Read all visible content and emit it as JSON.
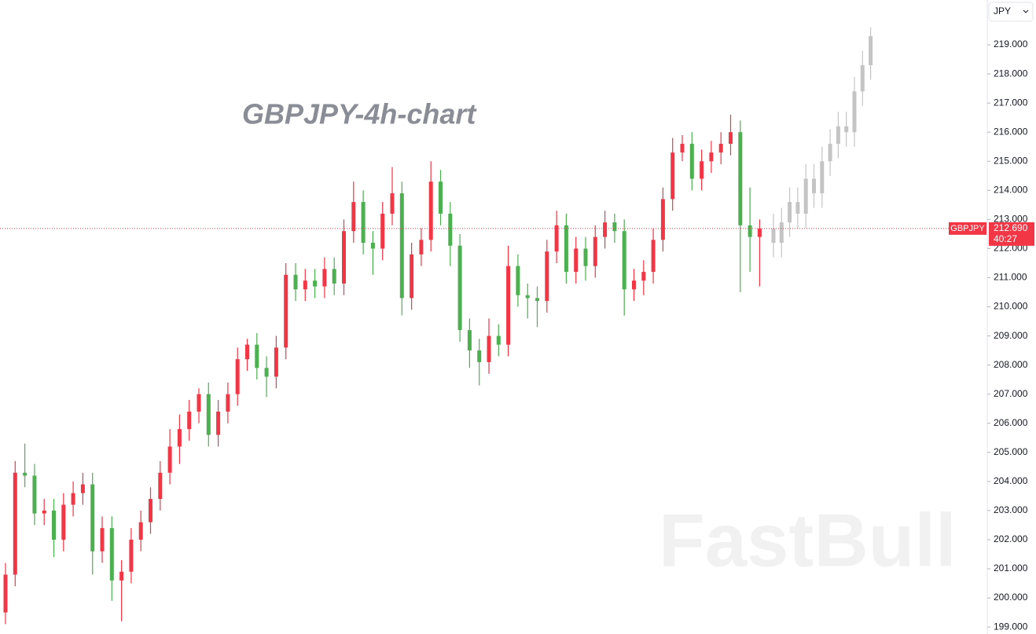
{
  "chart_data": {
    "type": "candlestick",
    "title": "GBPJPY-4h-chart",
    "watermark": "FastBull",
    "currency": "JPY",
    "symbol": "GBPJPY",
    "last_price": {
      "value": 212.69,
      "label": "212.690"
    },
    "countdown": "40:27",
    "price_line_color": "#f23645",
    "ylim": [
      198.76,
      220.54
    ],
    "yticks": [
      {
        "value": 199,
        "label": "199.000"
      },
      {
        "value": 200,
        "label": "200.000"
      },
      {
        "value": 201,
        "label": "201.000"
      },
      {
        "value": 202,
        "label": "202.000"
      },
      {
        "value": 203,
        "label": "203.000"
      },
      {
        "value": 204,
        "label": "204.000"
      },
      {
        "value": 205,
        "label": "205.000"
      },
      {
        "value": 206,
        "label": "206.000"
      },
      {
        "value": 207,
        "label": "207.000"
      },
      {
        "value": 208,
        "label": "208.000"
      },
      {
        "value": 209,
        "label": "209.000"
      },
      {
        "value": 210,
        "label": "210.000"
      },
      {
        "value": 211,
        "label": "211.000"
      },
      {
        "value": 212,
        "label": "212.000"
      },
      {
        "value": 213,
        "label": "213.000"
      },
      {
        "value": 214,
        "label": "214.000"
      },
      {
        "value": 215,
        "label": "215.000"
      },
      {
        "value": 216,
        "label": "216.000"
      },
      {
        "value": 217,
        "label": "217.000"
      },
      {
        "value": 218,
        "label": "218.000"
      },
      {
        "value": 219,
        "label": "219.000"
      }
    ],
    "series": [
      {
        "color_up": "#f23645",
        "color_down": "#4caf50",
        "open": [
          199.5,
          200.8,
          204.3,
          204.2,
          202.9,
          203.0,
          202.0,
          203.2,
          203.6,
          203.9,
          201.6,
          202.4,
          200.6,
          200.9,
          202.0,
          202.6,
          203.4,
          204.3,
          205.2,
          205.8,
          206.4,
          207.0,
          205.6,
          206.4,
          207.0,
          208.2,
          208.7,
          207.9,
          207.6,
          208.6,
          211.1,
          210.6,
          210.9,
          210.7,
          211.3,
          210.8,
          212.6,
          213.6,
          212.2,
          212.0,
          213.2,
          213.9,
          210.3,
          211.8,
          212.3,
          214.3,
          213.2,
          212.1,
          209.2,
          208.5,
          208.1,
          209.0,
          208.7,
          211.4,
          210.4,
          210.3,
          210.2,
          211.9,
          212.8,
          211.2,
          212.0,
          211.4,
          212.4,
          212.9,
          212.6,
          210.6,
          210.9,
          211.2,
          212.3,
          213.7,
          215.3,
          215.6,
          214.4,
          215.0,
          215.3,
          215.6,
          216.0,
          212.8,
          212.4
        ],
        "high": [
          201.2,
          204.7,
          205.3,
          204.6,
          203.4,
          203.4,
          203.6,
          204.0,
          204.3,
          204.3,
          202.8,
          202.8,
          201.3,
          202.4,
          203.0,
          203.8,
          204.7,
          205.8,
          206.3,
          206.8,
          207.2,
          207.4,
          206.8,
          207.4,
          208.6,
          208.9,
          209.1,
          208.3,
          209.0,
          211.5,
          211.5,
          211.3,
          211.3,
          211.7,
          211.7,
          213.0,
          214.3,
          214.0,
          212.6,
          213.6,
          214.8,
          214.3,
          212.2,
          212.7,
          215.0,
          214.7,
          213.6,
          212.5,
          209.6,
          208.9,
          209.6,
          209.4,
          212.1,
          211.8,
          210.8,
          210.7,
          212.3,
          213.3,
          213.2,
          212.4,
          212.4,
          212.8,
          213.3,
          213.2,
          213.0,
          211.3,
          211.6,
          212.7,
          214.1,
          215.8,
          215.9,
          216.0,
          215.4,
          215.7,
          216.0,
          216.6,
          216.4,
          214.1,
          213.0
        ],
        "low": [
          199.1,
          200.4,
          203.8,
          202.5,
          202.5,
          201.4,
          201.6,
          202.8,
          203.2,
          200.8,
          201.2,
          199.9,
          199.2,
          200.5,
          201.6,
          202.2,
          203.0,
          203.9,
          204.6,
          205.4,
          206.0,
          205.2,
          205.2,
          206.0,
          206.6,
          207.8,
          207.5,
          206.9,
          207.2,
          208.2,
          210.2,
          210.2,
          210.3,
          210.3,
          210.4,
          210.4,
          212.2,
          211.8,
          211.1,
          211.6,
          212.8,
          209.7,
          209.9,
          211.4,
          211.9,
          212.8,
          211.4,
          208.8,
          207.9,
          207.3,
          207.7,
          208.3,
          208.3,
          210.0,
          209.6,
          209.3,
          209.8,
          211.5,
          210.8,
          210.8,
          210.9,
          211.0,
          212.0,
          212.2,
          209.7,
          210.2,
          210.4,
          210.8,
          211.9,
          213.3,
          215.0,
          214.0,
          214.0,
          214.6,
          214.9,
          215.2,
          210.5,
          211.2,
          210.7
        ],
        "close": [
          200.8,
          204.3,
          204.2,
          202.9,
          203.0,
          202.0,
          203.2,
          203.6,
          203.9,
          201.6,
          202.4,
          200.6,
          200.9,
          202.0,
          202.6,
          203.4,
          204.3,
          205.2,
          205.8,
          206.4,
          207.0,
          205.6,
          206.4,
          207.0,
          208.2,
          208.7,
          207.9,
          207.6,
          208.6,
          211.1,
          210.6,
          210.9,
          210.7,
          211.3,
          210.8,
          212.6,
          213.6,
          212.2,
          212.0,
          213.2,
          213.9,
          210.3,
          211.8,
          212.3,
          214.3,
          213.2,
          212.1,
          209.2,
          208.5,
          208.1,
          209.0,
          208.7,
          211.4,
          210.4,
          210.3,
          210.2,
          211.9,
          212.8,
          211.2,
          212.0,
          211.4,
          212.4,
          212.9,
          212.6,
          210.6,
          210.9,
          211.2,
          212.3,
          213.7,
          215.3,
          215.6,
          214.4,
          215.0,
          215.3,
          215.6,
          216.0,
          212.8,
          212.4,
          212.69
        ]
      },
      {
        "color_up": "#c4c4c4",
        "color_down": "#c4c4c4",
        "open": [
          212.69,
          212.2,
          212.9,
          213.6,
          213.2,
          214.4,
          213.9,
          215.0,
          215.6,
          216.2,
          216.0,
          217.4,
          218.3
        ],
        "high": [
          213.2,
          213.4,
          214.1,
          214.1,
          214.9,
          214.9,
          215.5,
          216.1,
          216.7,
          216.7,
          217.9,
          218.8,
          219.6
        ],
        "low": [
          211.7,
          211.7,
          212.4,
          212.7,
          212.7,
          213.4,
          213.4,
          214.5,
          215.1,
          215.5,
          215.5,
          216.9,
          217.8
        ],
        "close": [
          212.2,
          212.9,
          213.6,
          213.2,
          214.4,
          213.9,
          215.0,
          215.6,
          216.2,
          216.0,
          217.4,
          218.3,
          219.3
        ]
      }
    ]
  }
}
